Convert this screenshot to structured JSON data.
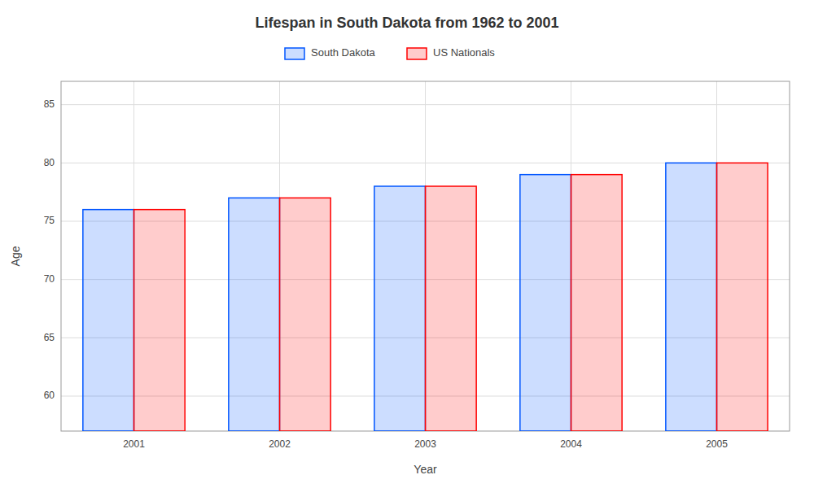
{
  "chart_data": {
    "type": "bar",
    "title": "Lifespan in South Dakota from 1962 to 2001",
    "xlabel": "Year",
    "ylabel": "Age",
    "categories": [
      "2001",
      "2002",
      "2003",
      "2004",
      "2005"
    ],
    "series": [
      {
        "name": "South Dakota",
        "color": "#0055ff",
        "values": [
          76,
          77,
          78,
          79,
          80
        ]
      },
      {
        "name": "US Nationals",
        "color": "#ff0000",
        "values": [
          76,
          77,
          78,
          79,
          80
        ]
      }
    ],
    "ylim": [
      57,
      87
    ],
    "yticks": [
      60,
      65,
      70,
      75,
      80,
      85
    ],
    "grid": true,
    "legend": "top"
  }
}
